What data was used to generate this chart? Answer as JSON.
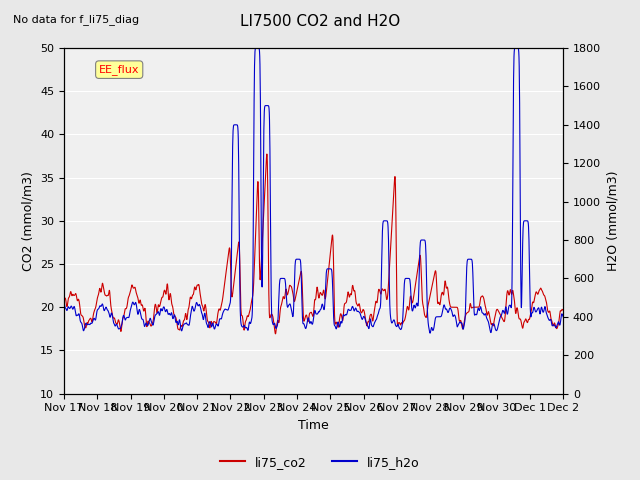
{
  "title": "LI7500 CO2 and H2O",
  "subtitle": "No data for f_li75_diag",
  "xlabel": "Time",
  "ylabel_left": "CO2 (mmol/m3)",
  "ylabel_right": "H2O (mmol/m3)",
  "ylim_left": [
    10,
    50
  ],
  "ylim_right": [
    0,
    1800
  ],
  "yticks_left": [
    10,
    15,
    20,
    25,
    30,
    35,
    40,
    45,
    50
  ],
  "yticks_right": [
    0,
    200,
    400,
    600,
    800,
    1000,
    1200,
    1400,
    1600,
    1800
  ],
  "xticklabels": [
    "Nov 17",
    "Nov 18",
    "Nov 19",
    "Nov 20",
    "Nov 21",
    "Nov 22",
    "Nov 23",
    "Nov 24",
    "Nov 25",
    "Nov 26",
    "Nov 27",
    "Nov 28",
    "Nov 29",
    "Nov 30",
    "Dec 1",
    "Dec 2"
  ],
  "legend_label_co2": "li75_co2",
  "legend_label_h2o": "li75_h2o",
  "color_co2": "#cc0000",
  "color_h2o": "#0000cc",
  "annotation_box_label": "EE_flux",
  "annotation_box_color": "#ffff99",
  "bg_color": "#e8e8e8",
  "plot_bg_color": "#f0f0f0",
  "grid_color": "#ffffff",
  "linewidth": 0.8
}
